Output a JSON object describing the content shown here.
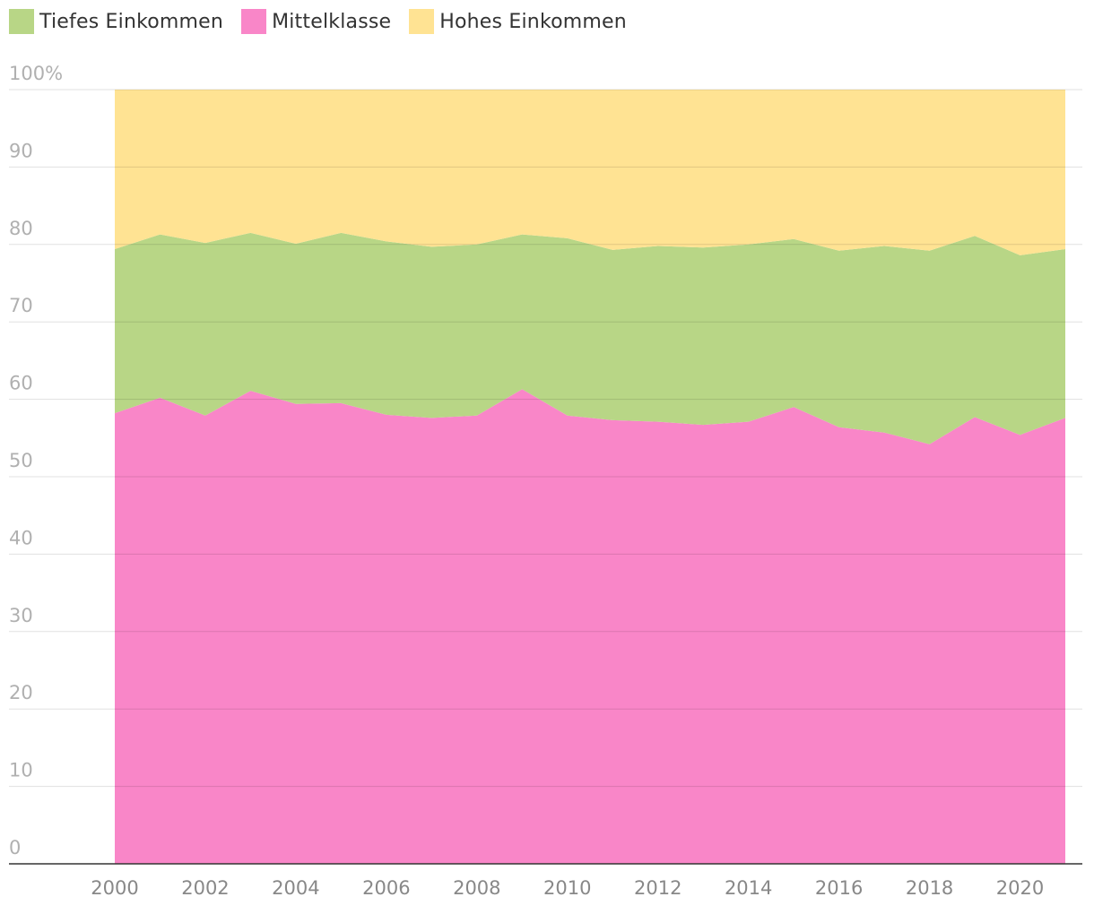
{
  "chart_data": {
    "type": "area",
    "stacked": true,
    "x": [
      2000,
      2001,
      2002,
      2003,
      2004,
      2005,
      2006,
      2007,
      2008,
      2009,
      2010,
      2011,
      2012,
      2013,
      2014,
      2015,
      2016,
      2017,
      2018,
      2019,
      2020,
      2021
    ],
    "series": [
      {
        "name": "Mittelklasse",
        "color": "#f986c8",
        "values": [
          58.2,
          60.2,
          57.9,
          61.1,
          59.4,
          59.5,
          58.0,
          57.6,
          57.9,
          61.3,
          57.9,
          57.3,
          57.1,
          56.7,
          57.1,
          59.0,
          56.4,
          55.7,
          54.2,
          57.7,
          55.4,
          57.6
        ]
      },
      {
        "name": "Tiefes Einkommen",
        "color": "#b8d686",
        "values": [
          21.2,
          21.1,
          22.3,
          20.4,
          20.7,
          22.0,
          22.4,
          22.1,
          22.1,
          20.0,
          22.9,
          22.0,
          22.7,
          22.9,
          22.9,
          21.7,
          22.8,
          24.1,
          25.0,
          23.4,
          23.2,
          21.8
        ]
      },
      {
        "name": "Hohes Einkommen",
        "color": "#ffe393",
        "values": [
          20.6,
          18.7,
          19.8,
          18.5,
          19.9,
          18.5,
          19.6,
          20.3,
          20.0,
          18.7,
          19.2,
          20.7,
          20.2,
          20.4,
          20.0,
          19.3,
          20.8,
          20.2,
          20.8,
          18.9,
          21.4,
          20.6
        ]
      }
    ],
    "legend": [
      {
        "label": "Tiefes Einkommen",
        "color": "#b8d686"
      },
      {
        "label": "Mittelklasse",
        "color": "#f986c8"
      },
      {
        "label": "Hohes Einkommen",
        "color": "#ffe393"
      }
    ],
    "yticks": [
      "0",
      "10",
      "20",
      "30",
      "40",
      "50",
      "60",
      "70",
      "80",
      "90",
      "100%"
    ],
    "xticks": [
      "2000",
      "2002",
      "2004",
      "2006",
      "2008",
      "2010",
      "2012",
      "2014",
      "2016",
      "2018",
      "2020"
    ],
    "ylim": [
      0,
      100
    ],
    "xlim": [
      1998,
      2022
    ],
    "grid": true,
    "legend_position": "top-left"
  }
}
